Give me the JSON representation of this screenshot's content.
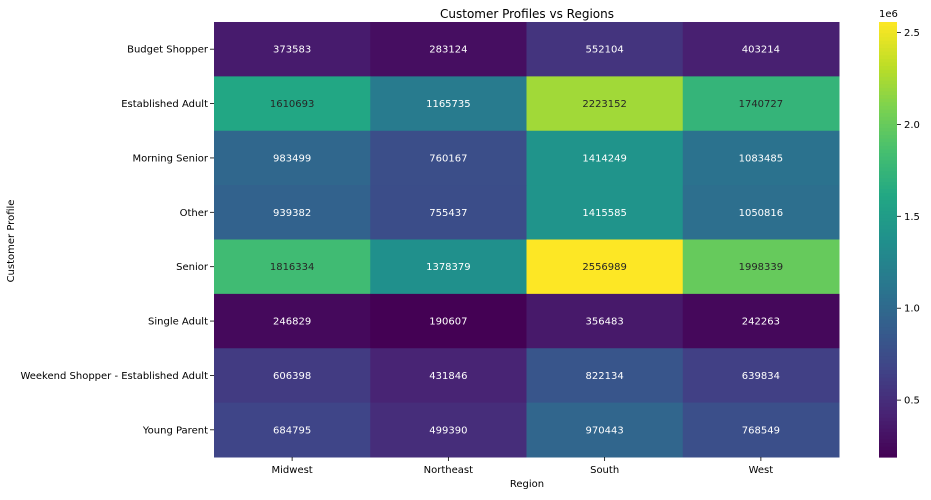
{
  "chart_data": {
    "type": "heatmap",
    "title": "Customer Profiles vs Regions",
    "xlabel": "Region",
    "ylabel": "Customer Profile",
    "x_categories": [
      "Midwest",
      "Northeast",
      "South",
      "West"
    ],
    "y_categories": [
      "Budget Shopper",
      "Established Adult",
      "Morning Senior",
      "Other",
      "Senior",
      "Single Adult",
      "Weekend Shopper - Established Adult",
      "Young Parent"
    ],
    "values": [
      [
        373583,
        283124,
        552104,
        403214
      ],
      [
        1610693,
        1165735,
        2223152,
        1740727
      ],
      [
        983499,
        760167,
        1414249,
        1083485
      ],
      [
        939382,
        755437,
        1415585,
        1050816
      ],
      [
        1816334,
        1378379,
        2556989,
        1998339
      ],
      [
        246829,
        190607,
        356483,
        242263
      ],
      [
        606398,
        431846,
        822134,
        639834
      ],
      [
        684795,
        499390,
        970443,
        768549
      ]
    ],
    "colormap": "viridis",
    "color_range": [
      190607,
      2556989
    ],
    "colorbar": {
      "ticks": [
        0.5,
        1.0,
        1.5,
        2.0,
        2.5
      ],
      "tick_labels": [
        "0.5",
        "1.0",
        "1.5",
        "2.0",
        "2.5"
      ],
      "multiplier_label": "1e6"
    },
    "annotated": true,
    "grid": false,
    "legend": "colorbar-right"
  }
}
